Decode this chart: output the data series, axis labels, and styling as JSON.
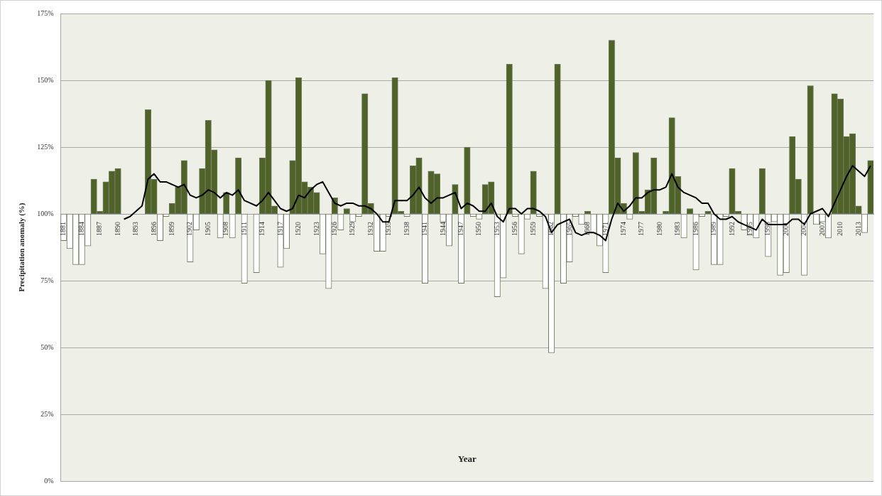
{
  "chart_data": {
    "type": "bar",
    "ylabel": "Precipitation anomaly (%)",
    "xlabel": "Year",
    "categories": [
      "1881",
      null,
      null,
      "1884",
      null,
      null,
      "1887",
      null,
      null,
      "1890",
      null,
      null,
      "1893",
      null,
      null,
      "1896",
      null,
      null,
      "1899",
      null,
      null,
      "1902",
      null,
      null,
      "1905",
      null,
      null,
      "1908",
      null,
      null,
      "1911",
      null,
      null,
      "1914",
      null,
      null,
      "1917",
      null,
      null,
      "1920",
      null,
      null,
      "1923",
      null,
      null,
      "1926",
      null,
      null,
      "1929",
      null,
      null,
      "1932",
      null,
      null,
      "1935",
      null,
      null,
      "1938",
      null,
      null,
      "1941",
      null,
      null,
      "1944",
      null,
      null,
      "1947",
      null,
      null,
      "1950",
      null,
      null,
      "1953",
      null,
      null,
      "1956",
      null,
      null,
      "1959",
      null,
      null,
      "1962",
      null,
      null,
      "1965",
      null,
      null,
      "1968",
      null,
      null,
      "1971",
      null,
      null,
      "1974",
      null,
      null,
      "1977",
      null,
      null,
      "1980",
      null,
      null,
      "1983",
      null,
      null,
      "1986",
      null,
      null,
      "1989",
      null,
      null,
      "1992",
      null,
      null,
      "1995",
      null,
      null,
      "1998",
      null,
      null,
      "2001",
      null,
      null,
      "2004",
      null,
      null,
      "2007",
      null,
      null,
      "2010",
      null,
      null,
      "2013",
      null,
      null
    ],
    "series": [
      {
        "base": [
          100,
          100,
          100,
          100,
          100,
          100,
          100,
          100,
          100,
          100,
          100,
          100,
          100,
          100,
          100,
          100,
          100,
          100,
          100,
          100,
          100,
          100,
          100,
          100,
          100,
          100,
          100,
          100,
          100,
          100,
          100,
          100,
          100,
          100,
          100,
          100,
          100,
          100,
          100,
          100,
          100,
          100,
          100,
          100,
          100,
          100,
          100,
          100,
          100,
          100,
          100,
          100,
          100,
          100,
          100,
          100,
          100,
          100,
          100,
          100,
          100,
          100,
          100,
          100,
          100,
          100,
          100,
          100,
          100,
          100,
          100,
          100,
          100,
          100,
          100,
          100,
          100,
          100,
          100,
          100,
          100,
          100,
          100,
          100,
          100,
          100,
          100,
          100,
          100,
          100,
          100,
          100,
          100,
          100,
          100,
          100,
          100,
          100,
          100,
          100,
          100,
          100,
          100,
          100,
          100,
          100,
          100,
          100,
          100,
          100,
          100,
          100,
          100,
          100,
          100,
          100,
          100,
          100,
          100,
          100,
          100,
          100,
          100,
          100,
          100,
          100,
          100,
          100,
          100,
          100,
          100,
          100,
          100,
          100,
          100
        ],
        "values": [
          -10,
          -13,
          -19,
          -19,
          -12,
          13,
          1,
          12,
          16,
          17,
          0,
          0,
          0,
          0,
          39,
          13,
          -10,
          -1,
          4,
          10,
          20,
          -18,
          -6,
          17,
          35,
          24,
          -9,
          8,
          -9,
          21,
          -26,
          0,
          -22,
          21,
          50,
          3,
          -20,
          -13,
          20,
          51,
          12,
          10,
          8,
          -15,
          -28,
          6,
          -6,
          2,
          -3,
          -1,
          45,
          4,
          -14,
          -14,
          -1,
          51,
          1,
          -1,
          18,
          21,
          -26,
          16,
          15,
          -3,
          -12,
          11,
          -26,
          25,
          -1,
          -2,
          11,
          12,
          -31,
          -24,
          56,
          -1,
          -15,
          -2,
          16,
          -1,
          -28,
          -52,
          56,
          -26,
          -18,
          -1,
          -4,
          1,
          -7,
          -12,
          -22,
          65,
          21,
          4,
          -2,
          23,
          1,
          9,
          21,
          0,
          1,
          36,
          14,
          -9,
          2,
          -21,
          -1,
          1,
          -19,
          -19,
          -1,
          17,
          1,
          -6,
          -8,
          -9,
          17,
          -16,
          -3,
          -23,
          -22,
          29,
          13,
          -23,
          48,
          -4,
          -3,
          -9,
          45,
          43,
          29,
          30,
          3,
          -7,
          20
        ],
        "colors": [
          "#ffffff",
          "#ffffff",
          "#ffffff",
          "#ffffff",
          "#ffffff",
          "#4f6228",
          "#4f6228",
          "#4f6228",
          "#4f6228",
          "#4f6228",
          "#ffffff",
          "#ffffff",
          "#ffffff",
          "#ffffff",
          "#4f6228",
          "#4f6228",
          "#ffffff",
          "#ffffff",
          "#4f6228",
          "#4f6228",
          "#4f6228",
          "#ffffff",
          "#ffffff",
          "#4f6228",
          "#4f6228",
          "#4f6228",
          "#ffffff",
          "#4f6228",
          "#ffffff",
          "#4f6228",
          "#ffffff",
          "#ffffff",
          "#ffffff",
          "#4f6228",
          "#4f6228",
          "#4f6228",
          "#ffffff",
          "#ffffff",
          "#4f6228",
          "#4f6228",
          "#4f6228",
          "#4f6228",
          "#4f6228",
          "#ffffff",
          "#ffffff",
          "#4f6228",
          "#ffffff",
          "#4f6228",
          "#ffffff",
          "#ffffff",
          "#4f6228",
          "#4f6228",
          "#ffffff",
          "#ffffff",
          "#ffffff",
          "#4f6228",
          "#4f6228",
          "#ffffff",
          "#4f6228",
          "#4f6228",
          "#ffffff",
          "#4f6228",
          "#4f6228",
          "#ffffff",
          "#ffffff",
          "#4f6228",
          "#ffffff",
          "#4f6228",
          "#ffffff",
          "#ffffff",
          "#4f6228",
          "#4f6228",
          "#ffffff",
          "#ffffff",
          "#4f6228",
          "#ffffff",
          "#ffffff",
          "#ffffff",
          "#4f6228",
          "#ffffff",
          "#ffffff",
          "#ffffff",
          "#4f6228",
          "#ffffff",
          "#ffffff",
          "#ffffff",
          "#ffffff",
          "#4f6228",
          "#ffffff",
          "#ffffff",
          "#ffffff",
          "#4f6228",
          "#4f6228",
          "#4f6228",
          "#ffffff",
          "#4f6228",
          "#4f6228",
          "#4f6228",
          "#4f6228",
          "#ffffff",
          "#4f6228",
          "#4f6228",
          "#4f6228",
          "#ffffff",
          "#4f6228",
          "#ffffff",
          "#ffffff",
          "#4f6228",
          "#ffffff",
          "#ffffff",
          "#ffffff",
          "#4f6228",
          "#4f6228",
          "#ffffff",
          "#ffffff",
          "#ffffff",
          "#4f6228",
          "#ffffff",
          "#ffffff",
          "#ffffff",
          "#ffffff",
          "#4f6228",
          "#4f6228",
          "#ffffff",
          "#4f6228",
          "#ffffff",
          "#ffffff",
          "#ffffff",
          "#4f6228",
          "#4f6228",
          "#4f6228",
          "#4f6228",
          "#4f6228",
          "#ffffff",
          "#4f6228"
        ]
      },
      {
        "type": "line",
        "color": "#000000",
        "values": [
          null,
          null,
          null,
          null,
          null,
          null,
          null,
          null,
          null,
          null,
          98,
          99,
          101,
          103,
          113,
          115,
          112,
          112,
          111,
          110,
          111,
          107,
          106,
          107,
          109,
          108,
          106,
          108,
          107,
          109,
          105,
          104,
          103,
          105,
          108,
          105,
          102,
          101,
          102,
          107,
          106,
          109,
          111,
          112,
          108,
          104,
          103,
          104,
          104,
          103,
          103,
          102,
          100,
          97,
          97,
          105,
          105,
          105,
          107,
          110,
          106,
          104,
          106,
          106,
          107,
          108,
          102,
          104,
          103,
          101,
          101,
          104,
          99,
          97,
          102,
          102,
          100,
          102,
          102,
          101,
          99,
          93,
          96,
          97,
          98,
          93,
          92,
          93,
          93,
          92,
          90,
          98,
          104,
          101,
          103,
          106,
          106,
          108,
          109,
          109,
          110,
          115,
          110,
          108,
          107,
          106,
          104,
          104,
          100,
          98,
          98,
          99,
          97,
          96,
          95,
          94,
          98,
          96,
          96,
          96,
          96,
          98,
          98,
          96,
          100,
          101,
          102,
          99,
          104,
          109,
          114,
          118,
          116,
          114,
          118
        ]
      }
    ],
    "ylim": [
      0,
      175
    ],
    "yticks": [
      {
        "value": 0,
        "label": "0%"
      },
      {
        "value": 25,
        "label": "25%"
      },
      {
        "value": 50,
        "label": "50%"
      },
      {
        "value": 75,
        "label": "75%"
      },
      {
        "value": 100,
        "label": "100%"
      },
      {
        "value": 125,
        "label": "125%"
      },
      {
        "value": 150,
        "label": "150%"
      },
      {
        "value": 175,
        "label": "175%"
      }
    ],
    "grid": "y"
  }
}
